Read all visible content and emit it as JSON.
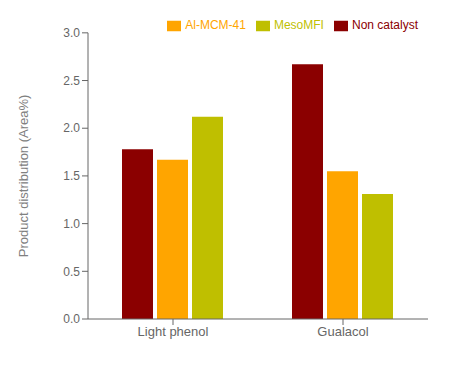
{
  "chart_data": {
    "type": "bar",
    "categories": [
      "Light phenol",
      "Gualacol"
    ],
    "series": [
      {
        "name": "Non catalyst",
        "color": "#8B0000",
        "values": [
          1.78,
          2.67
        ]
      },
      {
        "name": "Al-MCM-41",
        "color": "#FFA500",
        "values": [
          1.67,
          1.55
        ]
      },
      {
        "name": "MesoMFI",
        "color": "#BFBF00",
        "values": [
          2.12,
          1.31
        ]
      }
    ],
    "y_label": "Product distribution (Area%)",
    "ylim": [
      0,
      3
    ],
    "yticks": [
      {
        "value": 0,
        "label": "0.0"
      },
      0.5,
      {
        "value": 1,
        "label": "1.0"
      },
      1.5,
      {
        "value": 2,
        "label": "2.0"
      },
      2.5,
      {
        "value": 3,
        "label": "3.0"
      }
    ],
    "legend": "upper right"
  }
}
